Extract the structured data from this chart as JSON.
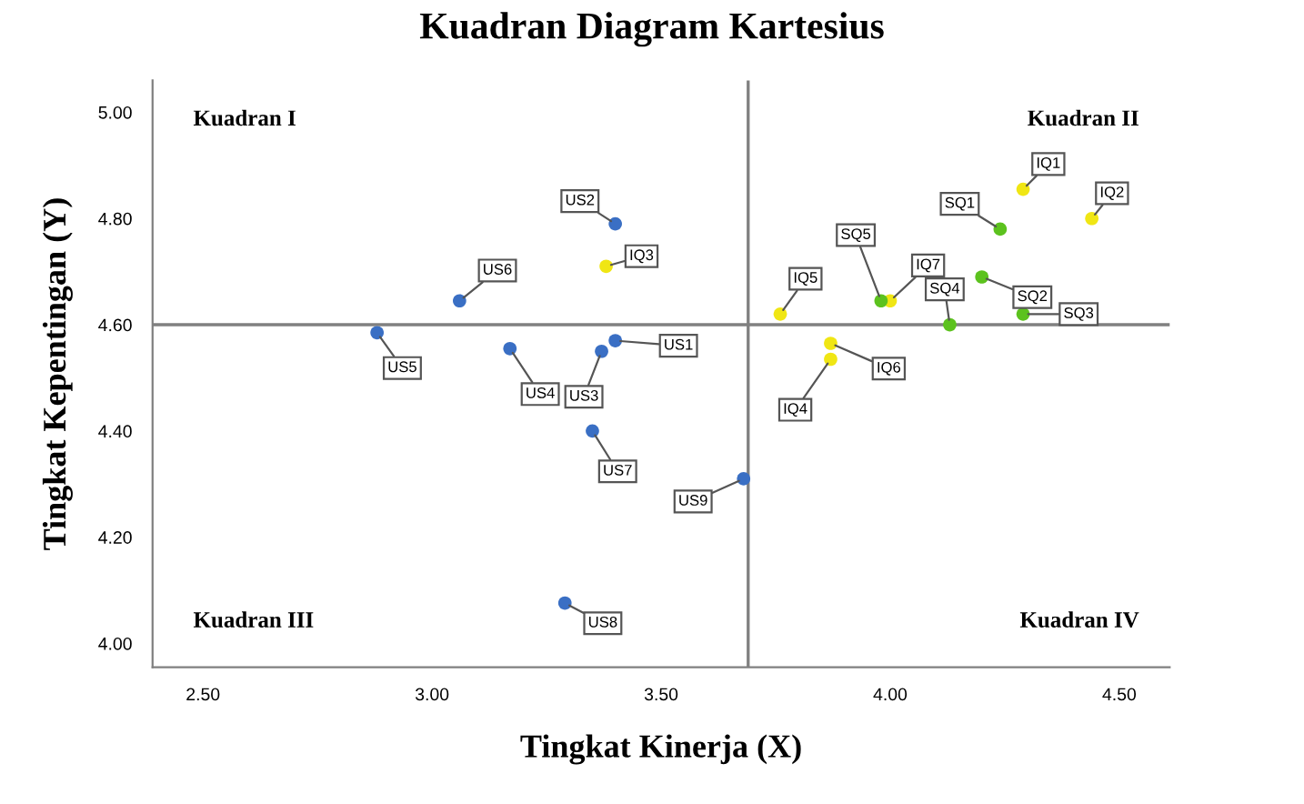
{
  "chart_data": {
    "type": "scatter",
    "title": "Kuadran Diagram Kartesius",
    "xlabel": "Tingkat Kinerja (X)",
    "ylabel": "Tingkat Kepentingan (Y)",
    "xlim": [
      2.39,
      4.61
    ],
    "ylim": [
      3.955,
      5.06
    ],
    "xticks": [
      {
        "value": 2.5,
        "label": "2.50"
      },
      {
        "value": 3.0,
        "label": "3.00"
      },
      {
        "value": 3.5,
        "label": "3.50"
      },
      {
        "value": 4.0,
        "label": "4.00"
      },
      {
        "value": 4.5,
        "label": "4.50"
      }
    ],
    "yticks": [
      {
        "value": 4.0,
        "label": "4.00"
      },
      {
        "value": 4.2,
        "label": "4.20"
      },
      {
        "value": 4.4,
        "label": "4.40"
      },
      {
        "value": 4.6,
        "label": "4.60"
      },
      {
        "value": 4.8,
        "label": "4.80"
      },
      {
        "value": 5.0,
        "label": "5.00"
      }
    ],
    "grid": false,
    "marker": "circle",
    "ref_lines": [
      {
        "axis": "x",
        "value": 3.69,
        "color": "#808080"
      },
      {
        "axis": "y",
        "value": 4.6,
        "color": "#808080"
      }
    ],
    "series": [
      {
        "color": "#3a6fc4",
        "x": [
          3.4,
          3.4,
          3.37,
          3.17,
          2.88,
          3.06,
          3.35,
          3.29,
          3.68
        ],
        "values": [
          4.57,
          4.79,
          4.55,
          4.555,
          4.585,
          4.645,
          4.4,
          4.076,
          4.31
        ]
      },
      {
        "color": "#f0e614",
        "x": [
          4.29,
          4.44,
          3.38,
          3.87,
          3.76,
          3.87,
          4.0
        ],
        "values": [
          4.855,
          4.8,
          4.71,
          4.535,
          4.62,
          4.565,
          4.645
        ]
      },
      {
        "color": "#5cc21e",
        "x": [
          4.24,
          4.2,
          4.29,
          4.13,
          3.98
        ],
        "values": [
          4.78,
          4.69,
          4.62,
          4.6,
          4.645
        ]
      }
    ],
    "annotations": [
      "Kuadran I",
      "Kuadran II",
      "Kuadran III",
      "Kuadran IV",
      {
        "text": "US1",
        "x": 3.4,
        "y": 4.57
      },
      {
        "text": "US2",
        "x": 3.4,
        "y": 4.79
      },
      {
        "text": "US3",
        "x": 3.37,
        "y": 4.55
      },
      {
        "text": "US4",
        "x": 3.17,
        "y": 4.555
      },
      {
        "text": "US5",
        "x": 2.88,
        "y": 4.585
      },
      {
        "text": "US6",
        "x": 3.06,
        "y": 4.645
      },
      {
        "text": "US7",
        "x": 3.35,
        "y": 4.4
      },
      {
        "text": "US8",
        "x": 3.29,
        "y": 4.076
      },
      {
        "text": "US9",
        "x": 3.68,
        "y": 4.31
      },
      {
        "text": "IQ1",
        "x": 4.29,
        "y": 4.855
      },
      {
        "text": "IQ2",
        "x": 4.44,
        "y": 4.8
      },
      {
        "text": "IQ3",
        "x": 3.38,
        "y": 4.71
      },
      {
        "text": "IQ4",
        "x": 3.87,
        "y": 4.535
      },
      {
        "text": "IQ5",
        "x": 3.76,
        "y": 4.62
      },
      {
        "text": "IQ6",
        "x": 3.87,
        "y": 4.565
      },
      {
        "text": "IQ7",
        "x": 4.0,
        "y": 4.645
      },
      {
        "text": "SQ1",
        "x": 4.24,
        "y": 4.78
      },
      {
        "text": "SQ2",
        "x": 4.2,
        "y": 4.69
      },
      {
        "text": "SQ3",
        "x": 4.29,
        "y": 4.62
      },
      {
        "text": "SQ4",
        "x": 4.13,
        "y": 4.6
      },
      {
        "text": "SQ5",
        "x": 3.98,
        "y": 4.645
      }
    ]
  }
}
